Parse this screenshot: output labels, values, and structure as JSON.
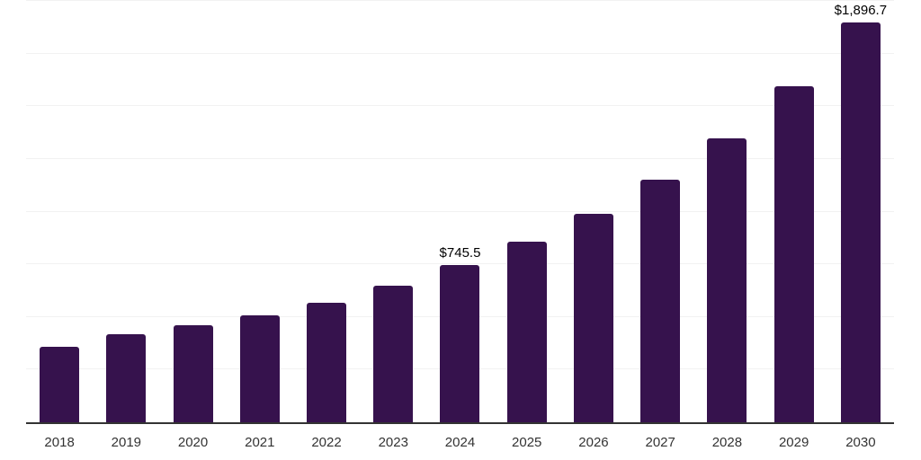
{
  "colors": {
    "background": "#ffffff",
    "bar": "#36124d",
    "gridline": "#f2f2f2",
    "axis": "#333333",
    "tick_text": "#333333",
    "value_label_text": "#000000"
  },
  "chart_data": {
    "type": "bar",
    "title": "",
    "xlabel": "",
    "ylabel": "",
    "categories": [
      "2018",
      "2019",
      "2020",
      "2021",
      "2022",
      "2023",
      "2024",
      "2025",
      "2026",
      "2027",
      "2028",
      "2029",
      "2030"
    ],
    "values": [
      359,
      416,
      462,
      508,
      568,
      647,
      745.5,
      857,
      988,
      1151,
      1347,
      1594,
      1896.7
    ],
    "value_labels": [
      "",
      "",
      "",
      "",
      "",
      "",
      "$745.5",
      "",
      "",
      "",
      "",
      "",
      "$1,896.7"
    ],
    "ylim": [
      0,
      2000
    ],
    "gridline_step": 250,
    "grid": true,
    "legend": false,
    "y_axis_tick_labels_visible": false
  }
}
